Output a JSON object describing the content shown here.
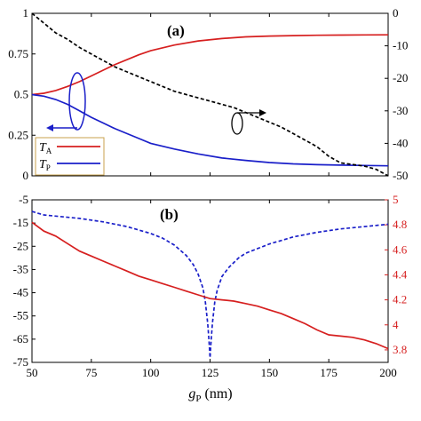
{
  "chart_data": [
    {
      "type": "line",
      "panel_label": "(a)",
      "xlim": [
        50,
        200
      ],
      "ylim_left": [
        0,
        1
      ],
      "ylim_right": [
        -50,
        0
      ],
      "left_ticks": [
        "0",
        "0.25",
        "0.5",
        "0.75",
        "1"
      ],
      "right_ticks": [
        "0",
        "-10",
        "-20",
        "-30",
        "-40",
        "-50"
      ],
      "legend": {
        "placement": "left-bottom",
        "entries": [
          {
            "sym": "T",
            "sub": "A",
            "color": "#d61f1f"
          },
          {
            "sym": "T",
            "sub": "P",
            "color": "#1a1fc9"
          }
        ]
      },
      "series": [
        {
          "axis": "left",
          "color": "#d61f1f",
          "style": "solid",
          "x": [
            50,
            55,
            60,
            65,
            70,
            75,
            80,
            85,
            90,
            95,
            100,
            110,
            120,
            130,
            140,
            150,
            160,
            170,
            180,
            190,
            200
          ],
          "y": [
            0.5,
            0.508,
            0.525,
            0.55,
            0.58,
            0.615,
            0.65,
            0.685,
            0.715,
            0.745,
            0.77,
            0.805,
            0.83,
            0.845,
            0.855,
            0.86,
            0.863,
            0.865,
            0.866,
            0.867,
            0.868
          ]
        },
        {
          "axis": "left",
          "color": "#1a1fc9",
          "style": "solid",
          "x": [
            50,
            55,
            60,
            65,
            70,
            75,
            80,
            85,
            90,
            95,
            100,
            110,
            120,
            130,
            140,
            150,
            160,
            170,
            180,
            190,
            200
          ],
          "y": [
            0.5,
            0.49,
            0.47,
            0.44,
            0.4,
            0.36,
            0.325,
            0.29,
            0.26,
            0.23,
            0.2,
            0.165,
            0.135,
            0.11,
            0.095,
            0.082,
            0.074,
            0.069,
            0.066,
            0.064,
            0.062
          ]
        },
        {
          "axis": "right",
          "color": "#000000",
          "style": "dashed",
          "x": [
            50,
            55,
            60,
            65,
            70,
            75,
            80,
            85,
            90,
            95,
            100,
            105,
            110,
            115,
            120,
            125,
            130,
            135,
            140,
            145,
            150,
            155,
            160,
            165,
            170,
            175,
            180,
            185,
            190,
            195,
            200
          ],
          "y": [
            0,
            -3,
            -6,
            -8,
            -10.5,
            -12.5,
            -14.5,
            -16.5,
            -18,
            -19.5,
            -21,
            -22.5,
            -24,
            -25,
            -26,
            -27,
            -28,
            -29,
            -30.5,
            -32,
            -33.5,
            -35,
            -37,
            -39,
            -41,
            -44,
            -46,
            -46.5,
            -47,
            -48,
            -50
          ]
        }
      ]
    },
    {
      "type": "line",
      "panel_label": "(b)",
      "xlim": [
        50,
        200
      ],
      "ylim_left": [
        -75,
        -5
      ],
      "ylim_right": [
        3.7,
        5
      ],
      "left_ticks": [
        "-5",
        "-15",
        "-25",
        "-35",
        "-45",
        "-55",
        "-65",
        "-75"
      ],
      "right_ticks": [
        "5",
        "4.8",
        "4.6",
        "4.4",
        "4.2",
        "4",
        "3.8"
      ],
      "x_ticks": [
        "50",
        "75",
        "100",
        "125",
        "150",
        "175",
        "200"
      ],
      "x_label": {
        "var": "g",
        "sub": "P",
        "unit": " (nm)"
      },
      "series": [
        {
          "axis": "left",
          "color": "#1a1fc9",
          "style": "dashed",
          "x": [
            50,
            55,
            60,
            70,
            80,
            90,
            100,
            105,
            110,
            115,
            118,
            120,
            122,
            123,
            124,
            124.5,
            125,
            125.5,
            126,
            127,
            128,
            130,
            133,
            137,
            140,
            150,
            160,
            170,
            180,
            190,
            200
          ],
          "y": [
            -10,
            -11.5,
            -12,
            -13,
            -14.5,
            -16.5,
            -19.5,
            -21.5,
            -24.5,
            -29,
            -33,
            -37,
            -43,
            -49,
            -58,
            -65,
            -73,
            -65,
            -58,
            -49,
            -44,
            -38,
            -34,
            -30,
            -28,
            -24,
            -21,
            -19,
            -17.5,
            -16.5,
            -15.5
          ]
        },
        {
          "axis": "right",
          "color": "#d61f1f",
          "style": "solid",
          "x": [
            50,
            55,
            60,
            65,
            70,
            75,
            80,
            85,
            90,
            95,
            100,
            105,
            110,
            115,
            120,
            125,
            130,
            135,
            140,
            145,
            150,
            155,
            160,
            165,
            170,
            175,
            180,
            185,
            190,
            195,
            200
          ],
          "y": [
            4.82,
            4.75,
            4.71,
            4.65,
            4.59,
            4.55,
            4.51,
            4.47,
            4.43,
            4.39,
            4.36,
            4.33,
            4.3,
            4.27,
            4.24,
            4.21,
            4.2,
            4.19,
            4.17,
            4.15,
            4.12,
            4.09,
            4.05,
            4.01,
            3.96,
            3.92,
            3.91,
            3.9,
            3.88,
            3.85,
            3.81
          ]
        }
      ]
    }
  ]
}
